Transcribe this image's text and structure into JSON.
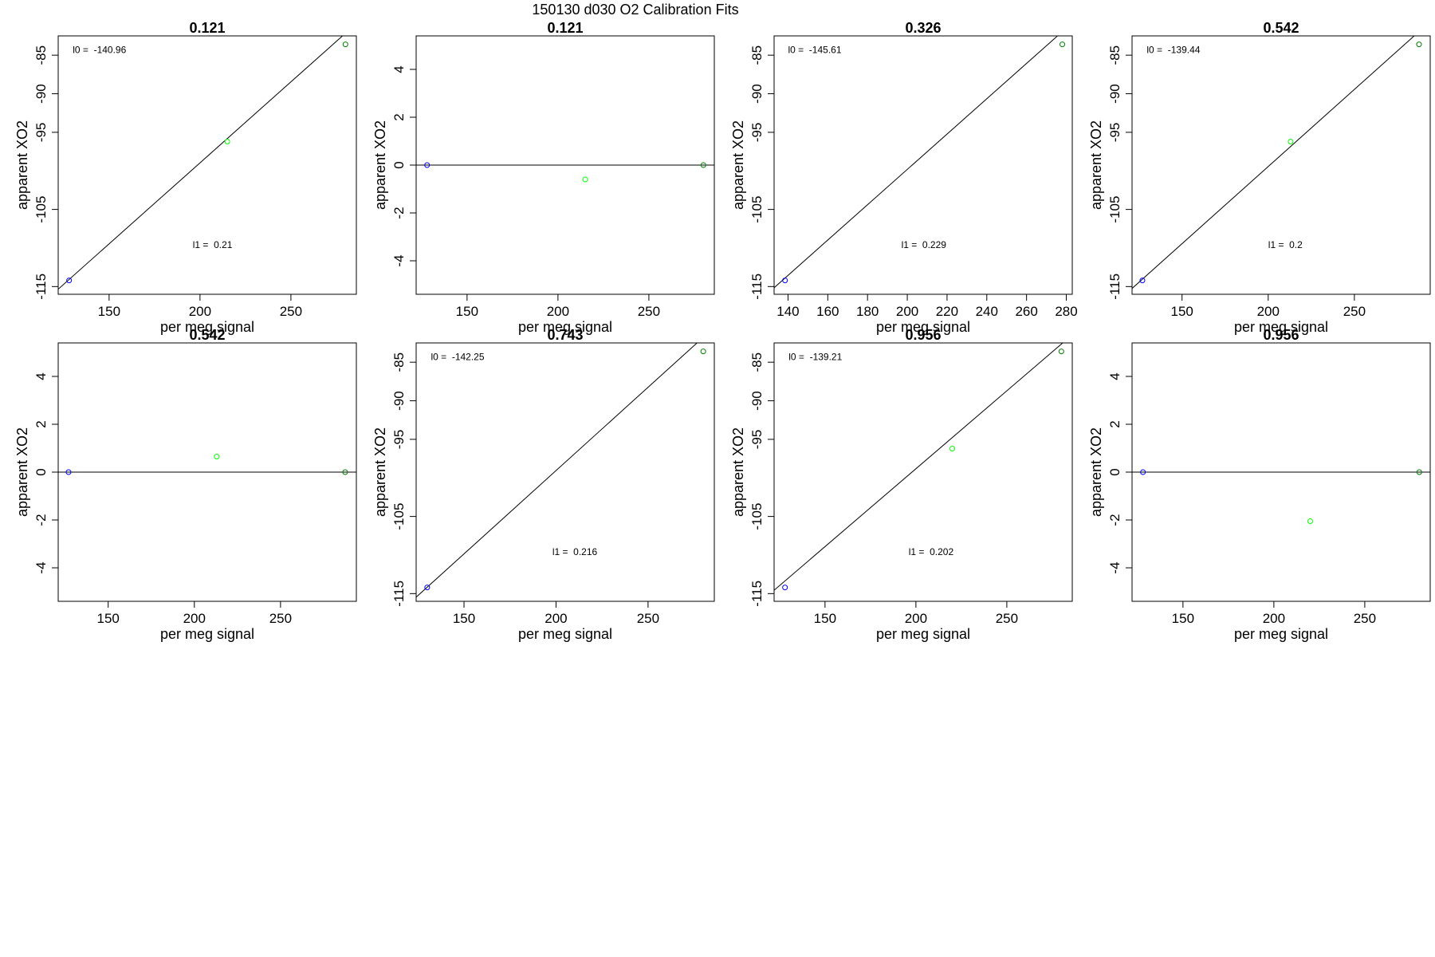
{
  "figure": {
    "title": "150130   d030   O2 Calibration Fits"
  },
  "colors": {
    "line": "#000000",
    "frame": "#000000",
    "point_low": "#0000ff",
    "point_mid": "#00ff00",
    "point_high": "#008000"
  },
  "chart_data": [
    {
      "type": "scatter",
      "title": "0.121",
      "xlabel": "per meg signal",
      "ylabel": "apparent XO2",
      "xlim": [
        122,
        286
      ],
      "ylim": [
        -116,
        -82.5
      ],
      "xticks": [
        150,
        200,
        250
      ],
      "yticks": [
        -115,
        -105,
        -95,
        -90,
        -85
      ],
      "points": [
        {
          "x": 128,
          "y": -114.2,
          "color": "#0000ff"
        },
        {
          "x": 215,
          "y": -96.2,
          "color": "#00ff00"
        },
        {
          "x": 280,
          "y": -83.6,
          "color": "#008000"
        }
      ],
      "fit_line": {
        "intercept": -140.96,
        "slope": 0.21
      },
      "annotations": [
        {
          "text": "l0 =  -140.96",
          "x": 130,
          "y": -84.7
        },
        {
          "text": "l1 =  0.21",
          "x": 196,
          "y": -110.0
        }
      ]
    },
    {
      "type": "scatter",
      "title": "0.121",
      "xlabel": "per meg signal",
      "ylabel": "apparent XO2",
      "xlim": [
        122,
        286
      ],
      "ylim": [
        -5.4,
        5.4
      ],
      "xticks": [
        150,
        200,
        250
      ],
      "yticks": [
        -4,
        -2,
        0,
        2,
        4
      ],
      "points": [
        {
          "x": 128,
          "y": 0,
          "color": "#0000ff"
        },
        {
          "x": 215,
          "y": -0.6,
          "color": "#00ff00"
        },
        {
          "x": 280,
          "y": 0,
          "color": "#008000"
        }
      ],
      "fit_line": {
        "intercept": 0,
        "slope": 0
      },
      "annotations": []
    },
    {
      "type": "scatter",
      "title": "0.326",
      "xlabel": "per meg signal",
      "ylabel": "apparent XO2",
      "xlim": [
        133,
        283
      ],
      "ylim": [
        -116,
        -82.5
      ],
      "xticks": [
        140,
        160,
        180,
        200,
        220,
        240,
        260,
        280
      ],
      "yticks": [
        -115,
        -105,
        -95,
        -90,
        -85
      ],
      "points": [
        {
          "x": 138.5,
          "y": -114.2,
          "color": "#0000ff"
        },
        {
          "x": 278,
          "y": -83.6,
          "color": "#008000"
        }
      ],
      "fit_line": {
        "intercept": -145.61,
        "slope": 0.229
      },
      "annotations": [
        {
          "text": "l0 =  -145.61",
          "x": 140,
          "y": -84.7
        },
        {
          "text": "l1 =  0.229",
          "x": 197,
          "y": -110.0
        }
      ]
    },
    {
      "type": "scatter",
      "title": "0.542",
      "xlabel": "per meg signal",
      "ylabel": "apparent XO2",
      "xlim": [
        121,
        294
      ],
      "ylim": [
        -116,
        -82.5
      ],
      "xticks": [
        150,
        200,
        250
      ],
      "yticks": [
        -115,
        -105,
        -95,
        -90,
        -85
      ],
      "points": [
        {
          "x": 127,
          "y": -114.2,
          "color": "#0000ff"
        },
        {
          "x": 213,
          "y": -96.2,
          "color": "#00ff00"
        },
        {
          "x": 287.5,
          "y": -83.6,
          "color": "#008000"
        }
      ],
      "fit_line": {
        "intercept": -139.44,
        "slope": 0.2
      },
      "annotations": [
        {
          "text": "l0 =  -139.44",
          "x": 129.5,
          "y": -84.7
        },
        {
          "text": "l1 =  0.2",
          "x": 200,
          "y": -110.0
        }
      ]
    },
    {
      "type": "scatter",
      "title": "0.542",
      "xlabel": "per meg signal",
      "ylabel": "apparent XO2",
      "xlim": [
        121,
        294
      ],
      "ylim": [
        -5.4,
        5.4
      ],
      "xticks": [
        150,
        200,
        250
      ],
      "yticks": [
        -4,
        -2,
        0,
        2,
        4
      ],
      "points": [
        {
          "x": 127,
          "y": 0,
          "color": "#0000ff"
        },
        {
          "x": 213,
          "y": 0.65,
          "color": "#00ff00"
        },
        {
          "x": 287.5,
          "y": 0,
          "color": "#008000"
        }
      ],
      "fit_line": {
        "intercept": 0,
        "slope": 0
      },
      "annotations": []
    },
    {
      "type": "scatter",
      "title": "0.743",
      "xlabel": "per meg signal",
      "ylabel": "apparent XO2",
      "xlim": [
        124,
        286
      ],
      "ylim": [
        -116,
        -82.5
      ],
      "xticks": [
        150,
        200,
        250
      ],
      "yticks": [
        -115,
        -105,
        -95,
        -90,
        -85
      ],
      "points": [
        {
          "x": 130,
          "y": -114.2,
          "color": "#0000ff"
        },
        {
          "x": 280,
          "y": -83.6,
          "color": "#008000"
        }
      ],
      "fit_line": {
        "intercept": -142.25,
        "slope": 0.216
      },
      "annotations": [
        {
          "text": "l0 =  -142.25",
          "x": 132,
          "y": -84.7
        },
        {
          "text": "l1 =  0.216",
          "x": 198,
          "y": -110.0
        }
      ]
    },
    {
      "type": "scatter",
      "title": "0.956",
      "xlabel": "per meg signal",
      "ylabel": "apparent XO2",
      "xlim": [
        122,
        286
      ],
      "ylim": [
        -116,
        -82.5
      ],
      "xticks": [
        150,
        200,
        250
      ],
      "yticks": [
        -115,
        -105,
        -95,
        -90,
        -85
      ],
      "points": [
        {
          "x": 128,
          "y": -114.2,
          "color": "#0000ff"
        },
        {
          "x": 220,
          "y": -96.2,
          "color": "#00ff00"
        },
        {
          "x": 280,
          "y": -83.6,
          "color": "#008000"
        }
      ],
      "fit_line": {
        "intercept": -139.21,
        "slope": 0.202
      },
      "annotations": [
        {
          "text": "l0 =  -139.21",
          "x": 130,
          "y": -84.7
        },
        {
          "text": "l1 =  0.202",
          "x": 196,
          "y": -110.0
        }
      ]
    },
    {
      "type": "scatter",
      "title": "0.956",
      "xlabel": "per meg signal",
      "ylabel": "apparent XO2",
      "xlim": [
        122,
        286
      ],
      "ylim": [
        -5.4,
        5.4
      ],
      "xticks": [
        150,
        200,
        250
      ],
      "yticks": [
        -4,
        -2,
        0,
        2,
        4
      ],
      "points": [
        {
          "x": 128,
          "y": 0,
          "color": "#0000ff"
        },
        {
          "x": 220,
          "y": -2.05,
          "color": "#00ff00"
        },
        {
          "x": 280,
          "y": 0,
          "color": "#008000"
        }
      ],
      "fit_line": {
        "intercept": 0,
        "slope": 0
      },
      "annotations": []
    }
  ]
}
